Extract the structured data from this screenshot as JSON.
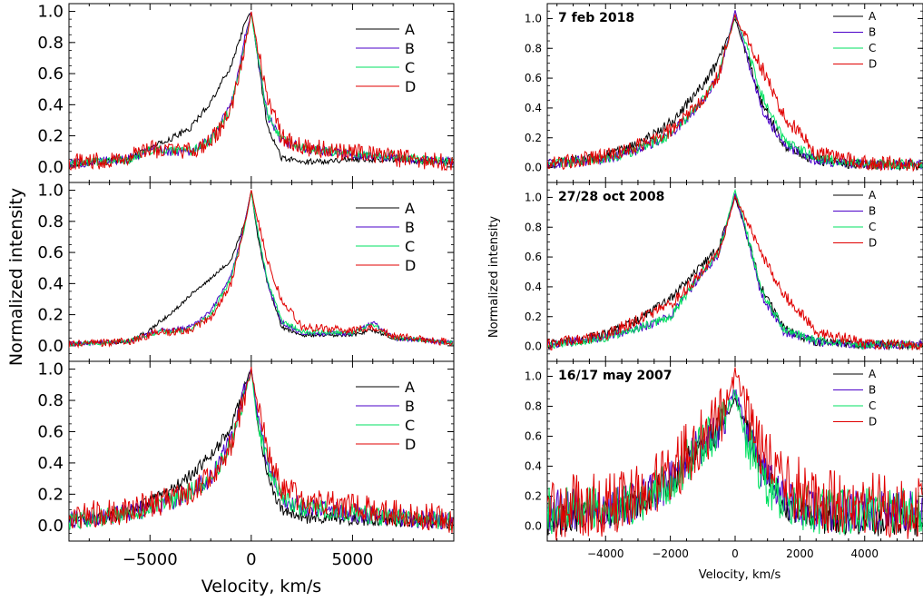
{
  "figure": {
    "left_group": {
      "ylabel": "Normalized intensity",
      "xlabel": "Velocity, km/s"
    },
    "right_group": {
      "ylabel": "Normalized intensity",
      "xlabel": "Velocity, km/s"
    }
  },
  "colors": {
    "A": "#000000",
    "B": "#4b00c8",
    "C": "#00e060",
    "D": "#e00000"
  },
  "chart_data": [
    {
      "type": "line",
      "panel": "left-top",
      "date": "",
      "xlim": [
        -9000,
        10000
      ],
      "ylim": [
        -0.1,
        1.05
      ],
      "xticks": [],
      "xtick_labels": [],
      "yticks": [
        0.0,
        0.2,
        0.4,
        0.6,
        0.8,
        1.0
      ],
      "ytick_labels": [
        "0.0",
        "0.2",
        "0.4",
        "0.6",
        "0.8",
        "1.0"
      ],
      "series": [
        {
          "name": "A",
          "noise": 0.02,
          "x": [
            -9000,
            -6000,
            -5000,
            -4000,
            -3000,
            -2000,
            -1000,
            -300,
            0,
            300,
            800,
            1500,
            2500,
            5000,
            7000,
            10000
          ],
          "y": [
            0.02,
            0.05,
            0.12,
            0.18,
            0.25,
            0.42,
            0.65,
            0.93,
            1.0,
            0.72,
            0.25,
            0.06,
            0.03,
            0.05,
            0.05,
            0.03
          ]
        },
        {
          "name": "B",
          "noise": 0.03,
          "x": [
            -9000,
            -6000,
            -5000,
            -4000,
            -3000,
            -2000,
            -1000,
            -300,
            0,
            300,
            800,
            1500,
            2500,
            5000,
            7000,
            10000
          ],
          "y": [
            0.02,
            0.05,
            0.12,
            0.1,
            0.1,
            0.18,
            0.4,
            0.83,
            1.0,
            0.72,
            0.33,
            0.17,
            0.12,
            0.08,
            0.06,
            0.03
          ]
        },
        {
          "name": "C",
          "noise": 0.03,
          "x": [
            -9000,
            -6000,
            -5000,
            -4000,
            -3000,
            -2000,
            -1000,
            -300,
            0,
            300,
            800,
            1500,
            2500,
            5000,
            7000,
            10000
          ],
          "y": [
            0.02,
            0.05,
            0.11,
            0.1,
            0.1,
            0.17,
            0.38,
            0.8,
            0.99,
            0.72,
            0.33,
            0.18,
            0.12,
            0.09,
            0.07,
            0.03
          ]
        },
        {
          "name": "D",
          "noise": 0.06,
          "x": [
            -9000,
            -6000,
            -5000,
            -4000,
            -3000,
            -2000,
            -1000,
            -300,
            0,
            300,
            800,
            1500,
            2500,
            5000,
            7000,
            10000
          ],
          "y": [
            0.03,
            0.06,
            0.12,
            0.1,
            0.1,
            0.16,
            0.35,
            0.78,
            1.0,
            0.78,
            0.45,
            0.2,
            0.13,
            0.09,
            0.06,
            0.03
          ]
        }
      ]
    },
    {
      "type": "line",
      "panel": "left-middle",
      "date": "",
      "xlim": [
        -9000,
        10000
      ],
      "ylim": [
        -0.1,
        1.05
      ],
      "xticks": [],
      "xtick_labels": [],
      "yticks": [
        0.0,
        0.2,
        0.4,
        0.6,
        0.8,
        1.0
      ],
      "ytick_labels": [
        "0.0",
        "0.2",
        "0.4",
        "0.6",
        "0.8",
        "1.0"
      ],
      "series": [
        {
          "name": "A",
          "noise": 0.012,
          "x": [
            -9000,
            -6000,
            -5000,
            -4500,
            -4000,
            -3000,
            -2000,
            -1000,
            -300,
            0,
            300,
            800,
            1500,
            2500,
            5000,
            6000,
            7000,
            10000
          ],
          "y": [
            0.01,
            0.03,
            0.1,
            0.16,
            0.2,
            0.33,
            0.43,
            0.55,
            0.8,
            1.0,
            0.72,
            0.4,
            0.12,
            0.07,
            0.07,
            0.1,
            0.05,
            0.02
          ]
        },
        {
          "name": "B",
          "noise": 0.015,
          "x": [
            -9000,
            -6000,
            -5000,
            -4500,
            -4000,
            -3000,
            -2000,
            -1000,
            -300,
            0,
            300,
            800,
            1500,
            2500,
            5000,
            6000,
            7000,
            10000
          ],
          "y": [
            0.01,
            0.03,
            0.08,
            0.1,
            0.1,
            0.12,
            0.22,
            0.45,
            0.8,
            1.0,
            0.75,
            0.4,
            0.15,
            0.08,
            0.08,
            0.15,
            0.05,
            0.02
          ]
        },
        {
          "name": "C",
          "noise": 0.015,
          "x": [
            -9000,
            -6000,
            -5000,
            -4500,
            -4000,
            -3000,
            -2000,
            -1000,
            -300,
            0,
            300,
            800,
            1500,
            2500,
            5000,
            6000,
            7000,
            10000
          ],
          "y": [
            0.01,
            0.03,
            0.07,
            0.09,
            0.09,
            0.11,
            0.2,
            0.43,
            0.78,
            0.99,
            0.75,
            0.42,
            0.16,
            0.09,
            0.08,
            0.14,
            0.05,
            0.02
          ]
        },
        {
          "name": "D",
          "noise": 0.025,
          "x": [
            -9000,
            -6000,
            -5000,
            -4500,
            -4000,
            -3000,
            -2000,
            -1000,
            -300,
            0,
            300,
            800,
            1500,
            2500,
            5000,
            6000,
            7000,
            10000
          ],
          "y": [
            0.01,
            0.03,
            0.07,
            0.09,
            0.09,
            0.1,
            0.18,
            0.4,
            0.78,
            1.0,
            0.82,
            0.55,
            0.3,
            0.12,
            0.1,
            0.12,
            0.06,
            0.02
          ]
        }
      ]
    },
    {
      "type": "line",
      "panel": "left-bottom",
      "date": "",
      "xlim": [
        -9000,
        10000
      ],
      "ylim": [
        -0.1,
        1.05
      ],
      "xticks": [
        -5000,
        0,
        5000
      ],
      "xtick_labels": [
        "−5000",
        "0",
        "5000"
      ],
      "yticks": [
        0.0,
        0.2,
        0.4,
        0.6,
        0.8,
        1.0
      ],
      "ytick_labels": [
        "0.0",
        "0.2",
        "0.4",
        "0.6",
        "0.8",
        "1.0"
      ],
      "series": [
        {
          "name": "A",
          "noise": 0.04,
          "x": [
            -9000,
            -6000,
            -5000,
            -4000,
            -3000,
            -2000,
            -1000,
            -300,
            0,
            300,
            800,
            1500,
            2500,
            5000,
            7000,
            10000
          ],
          "y": [
            0.02,
            0.08,
            0.15,
            0.22,
            0.32,
            0.45,
            0.62,
            0.9,
            1.0,
            0.7,
            0.3,
            0.1,
            0.05,
            0.04,
            0.03,
            0.02
          ]
        },
        {
          "name": "B",
          "noise": 0.06,
          "x": [
            -9000,
            -6000,
            -5000,
            -4000,
            -3000,
            -2000,
            -1000,
            -300,
            0,
            300,
            800,
            1500,
            2500,
            5000,
            7000,
            10000
          ],
          "y": [
            0.03,
            0.08,
            0.12,
            0.15,
            0.22,
            0.3,
            0.55,
            0.88,
            1.0,
            0.7,
            0.4,
            0.18,
            0.12,
            0.08,
            0.05,
            0.03
          ]
        },
        {
          "name": "C",
          "noise": 0.06,
          "x": [
            -9000,
            -6000,
            -5000,
            -4000,
            -3000,
            -2000,
            -1000,
            -300,
            0,
            300,
            800,
            1500,
            2500,
            5000,
            7000,
            10000
          ],
          "y": [
            0.03,
            0.08,
            0.12,
            0.15,
            0.22,
            0.3,
            0.52,
            0.85,
            0.98,
            0.65,
            0.4,
            0.18,
            0.12,
            0.08,
            0.05,
            0.03
          ]
        },
        {
          "name": "D",
          "noise": 0.09,
          "x": [
            -9000,
            -6000,
            -5000,
            -4000,
            -3000,
            -2000,
            -1000,
            -300,
            0,
            300,
            800,
            1500,
            2500,
            5000,
            7000,
            10000
          ],
          "y": [
            0.05,
            0.1,
            0.14,
            0.16,
            0.22,
            0.3,
            0.5,
            0.85,
            1.0,
            0.78,
            0.48,
            0.25,
            0.16,
            0.12,
            0.08,
            0.04
          ]
        }
      ]
    },
    {
      "type": "line",
      "panel": "right-top",
      "date": "7 feb 2018",
      "xlim": [
        -5800,
        5800
      ],
      "ylim": [
        -0.1,
        1.1
      ],
      "xticks": [],
      "xtick_labels": [],
      "yticks": [
        0.0,
        0.2,
        0.4,
        0.6,
        0.8,
        1.0
      ],
      "ytick_labels": [
        "0.0",
        "0.2",
        "0.4",
        "0.6",
        "0.8",
        "1.0"
      ],
      "series": [
        {
          "name": "A",
          "noise": 0.035,
          "x": [
            -5800,
            -4000,
            -3000,
            -2000,
            -1000,
            -500,
            0,
            300,
            800,
            1500,
            2500,
            4000,
            5800
          ],
          "y": [
            0.02,
            0.08,
            0.15,
            0.3,
            0.55,
            0.72,
            1.0,
            0.8,
            0.45,
            0.15,
            0.05,
            0.02,
            0.02
          ]
        },
        {
          "name": "B",
          "noise": 0.035,
          "x": [
            -5800,
            -4000,
            -3000,
            -2000,
            -1000,
            -500,
            0,
            300,
            800,
            1500,
            2500,
            4000,
            5800
          ],
          "y": [
            0.02,
            0.06,
            0.12,
            0.22,
            0.45,
            0.62,
            1.05,
            0.8,
            0.4,
            0.15,
            0.05,
            0.02,
            0.02
          ]
        },
        {
          "name": "C",
          "noise": 0.035,
          "x": [
            -5800,
            -4000,
            -3000,
            -2000,
            -1000,
            -500,
            0,
            300,
            800,
            1500,
            2500,
            4000,
            5800
          ],
          "y": [
            0.02,
            0.06,
            0.12,
            0.22,
            0.45,
            0.62,
            1.02,
            0.85,
            0.5,
            0.18,
            0.06,
            0.02,
            0.02
          ]
        },
        {
          "name": "D",
          "noise": 0.05,
          "x": [
            -5800,
            -4000,
            -3000,
            -2000,
            -1000,
            -500,
            0,
            300,
            800,
            1500,
            2500,
            4000,
            5800
          ],
          "y": [
            0.02,
            0.08,
            0.15,
            0.25,
            0.45,
            0.62,
            1.02,
            0.88,
            0.68,
            0.35,
            0.1,
            0.03,
            0.02
          ]
        }
      ]
    },
    {
      "type": "line",
      "panel": "right-middle",
      "date": "27/28 oct 2008",
      "xlim": [
        -5800,
        5800
      ],
      "ylim": [
        -0.1,
        1.1
      ],
      "xticks": [],
      "xtick_labels": [],
      "yticks": [
        0.0,
        0.2,
        0.4,
        0.6,
        0.8,
        1.0
      ],
      "ytick_labels": [
        "0.0",
        "0.2",
        "0.4",
        "0.6",
        "0.8",
        "1.0"
      ],
      "series": [
        {
          "name": "A",
          "noise": 0.03,
          "x": [
            -5800,
            -4000,
            -3000,
            -2000,
            -1000,
            -500,
            0,
            300,
            800,
            1500,
            2500,
            4000,
            5800
          ],
          "y": [
            0.01,
            0.08,
            0.18,
            0.32,
            0.55,
            0.66,
            1.0,
            0.8,
            0.4,
            0.12,
            0.03,
            0.01,
            0.01
          ]
        },
        {
          "name": "B",
          "noise": 0.03,
          "x": [
            -5800,
            -4000,
            -3000,
            -2000,
            -1000,
            -500,
            0,
            300,
            800,
            1500,
            2500,
            4000,
            5800
          ],
          "y": [
            0.01,
            0.06,
            0.12,
            0.2,
            0.5,
            0.62,
            1.02,
            0.8,
            0.35,
            0.1,
            0.03,
            0.01,
            0.01
          ]
        },
        {
          "name": "C",
          "noise": 0.03,
          "x": [
            -5800,
            -4000,
            -3000,
            -2000,
            -1000,
            -500,
            0,
            300,
            800,
            1500,
            2500,
            4000,
            5800
          ],
          "y": [
            0.01,
            0.06,
            0.12,
            0.2,
            0.5,
            0.62,
            1.05,
            0.82,
            0.38,
            0.12,
            0.04,
            0.01,
            0.01
          ]
        },
        {
          "name": "D",
          "noise": 0.04,
          "x": [
            -5800,
            -4000,
            -3000,
            -2000,
            -1000,
            -500,
            0,
            300,
            800,
            1500,
            2500,
            4000,
            5800
          ],
          "y": [
            0.01,
            0.08,
            0.18,
            0.28,
            0.5,
            0.64,
            1.0,
            0.88,
            0.62,
            0.35,
            0.1,
            0.02,
            0.01
          ]
        }
      ]
    },
    {
      "type": "line",
      "panel": "right-bottom",
      "date": "16/17 may 2007",
      "xlim": [
        -5800,
        5800
      ],
      "ylim": [
        -0.1,
        1.1
      ],
      "xticks": [
        -4000,
        -2000,
        0,
        2000,
        4000
      ],
      "xtick_labels": [
        "−4000",
        "−2000",
        "0",
        "2000",
        "4000"
      ],
      "yticks": [
        0.0,
        0.2,
        0.4,
        0.6,
        0.8,
        1.0
      ],
      "ytick_labels": [
        "0.0",
        "0.2",
        "0.4",
        "0.6",
        "0.8",
        "1.0"
      ],
      "series": [
        {
          "name": "A",
          "noise": 0.1,
          "x": [
            -5800,
            -4000,
            -3000,
            -2000,
            -1000,
            -500,
            0,
            300,
            800,
            1500,
            2500,
            4000,
            5800
          ],
          "y": [
            0.03,
            0.08,
            0.15,
            0.3,
            0.55,
            0.65,
            0.85,
            0.7,
            0.4,
            0.15,
            0.05,
            0.03,
            0.03
          ]
        },
        {
          "name": "B",
          "noise": 0.14,
          "x": [
            -5800,
            -4000,
            -3000,
            -2000,
            -1000,
            -500,
            0,
            300,
            800,
            1500,
            2500,
            4000,
            5800
          ],
          "y": [
            0.1,
            0.12,
            0.15,
            0.3,
            0.55,
            0.65,
            0.9,
            0.7,
            0.4,
            0.18,
            0.1,
            0.1,
            0.1
          ]
        },
        {
          "name": "C",
          "noise": 0.16,
          "x": [
            -5800,
            -4000,
            -3000,
            -2000,
            -1000,
            -500,
            0,
            300,
            800,
            1500,
            2500,
            4000,
            5800
          ],
          "y": [
            0.1,
            0.12,
            0.15,
            0.3,
            0.55,
            0.65,
            0.9,
            0.6,
            0.35,
            0.15,
            0.1,
            0.1,
            0.1
          ]
        },
        {
          "name": "D",
          "noise": 0.22,
          "x": [
            -5800,
            -4000,
            -3000,
            -2000,
            -1000,
            -500,
            0,
            300,
            800,
            1500,
            2500,
            4000,
            5800
          ],
          "y": [
            0.12,
            0.15,
            0.2,
            0.35,
            0.6,
            0.7,
            1.0,
            0.85,
            0.55,
            0.3,
            0.18,
            0.15,
            0.12
          ]
        }
      ]
    }
  ]
}
